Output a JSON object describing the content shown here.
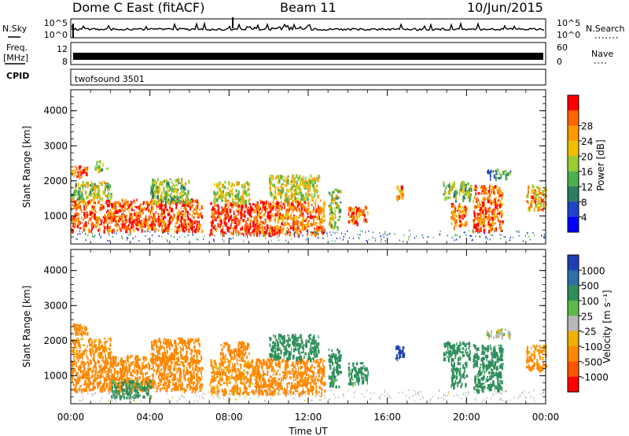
{
  "header": {
    "station": "Dome C East (fitACF)",
    "beam": "Beam 11",
    "date": "10/Jun/2015"
  },
  "panels": {
    "nsky": {
      "label": "N.Sky",
      "ticks": [
        "10^5",
        "10^0"
      ]
    },
    "nsearch": {
      "label": "N.Search"
    },
    "freq": {
      "label_line1": "Freq.",
      "label_line2": "[MHz]",
      "ticks": [
        "12",
        "8"
      ]
    },
    "nave": {
      "label": "Nave",
      "ticks": [
        "60",
        "0"
      ]
    },
    "cpid": {
      "label": "CPID",
      "value": "twofsound 3501"
    }
  },
  "chart_data": [
    {
      "type": "heatmap",
      "name": "Power",
      "xlabel": "Time UT",
      "ylabel": "Slant Range [km]",
      "x_ticks": [
        "00:00",
        "04:00",
        "08:00",
        "12:00",
        "16:00",
        "20:00",
        "00:00"
      ],
      "xlim_hours": [
        0,
        24
      ],
      "y_ticks": [
        1000,
        2000,
        3000,
        4000
      ],
      "ylim": [
        200,
        4600
      ],
      "colorbar": {
        "label": "Power [dB]",
        "ticks": [
          "4",
          "8",
          "12",
          "16",
          "20",
          "24",
          "28"
        ],
        "range": [
          0,
          32
        ],
        "colors": [
          "#0000ff",
          "#2244cc",
          "#2e7d5e",
          "#4caf50",
          "#9acd32",
          "#f0c000",
          "#ff9900",
          "#ff6600",
          "#ff0000"
        ]
      },
      "regions": [
        {
          "t0": 0.0,
          "t1": 6.6,
          "r0": 600,
          "r1": 1500,
          "v": 27
        },
        {
          "t0": 0.0,
          "t1": 2.0,
          "r0": 1500,
          "r1": 2000,
          "v": 16
        },
        {
          "t0": 0.0,
          "t1": 0.8,
          "r0": 2150,
          "r1": 2450,
          "v": 25
        },
        {
          "t0": 1.2,
          "t1": 1.8,
          "r0": 2350,
          "r1": 2600,
          "v": 14
        },
        {
          "t0": 4.0,
          "t1": 6.0,
          "r0": 1400,
          "r1": 2100,
          "v": 14
        },
        {
          "t0": 7.0,
          "t1": 9.5,
          "r0": 500,
          "r1": 1400,
          "v": 30
        },
        {
          "t0": 7.2,
          "t1": 9.0,
          "r0": 1400,
          "r1": 2000,
          "v": 18
        },
        {
          "t0": 9.3,
          "t1": 12.8,
          "r0": 500,
          "r1": 1500,
          "v": 26
        },
        {
          "t0": 10.0,
          "t1": 12.5,
          "r0": 1500,
          "r1": 2200,
          "v": 18
        },
        {
          "t0": 13.0,
          "t1": 13.6,
          "r0": 700,
          "r1": 1800,
          "v": 16
        },
        {
          "t0": 14.0,
          "t1": 15.0,
          "r0": 800,
          "r1": 1300,
          "v": 26
        },
        {
          "t0": 16.4,
          "t1": 16.8,
          "r0": 1500,
          "r1": 1900,
          "v": 22
        },
        {
          "t0": 18.8,
          "t1": 20.2,
          "r0": 1500,
          "r1": 2000,
          "v": 14
        },
        {
          "t0": 19.2,
          "t1": 20.0,
          "r0": 700,
          "r1": 1400,
          "v": 26
        },
        {
          "t0": 20.3,
          "t1": 21.8,
          "r0": 600,
          "r1": 1900,
          "v": 26
        },
        {
          "t0": 21.0,
          "t1": 22.2,
          "r0": 2100,
          "r1": 2350,
          "v": 10
        },
        {
          "t0": 23.0,
          "t1": 24.0,
          "r0": 1200,
          "r1": 1900,
          "v": 22
        }
      ]
    },
    {
      "type": "heatmap",
      "name": "Velocity",
      "xlabel": "Time UT",
      "ylabel": "Slant Range [km]",
      "x_ticks": [
        "00:00",
        "04:00",
        "08:00",
        "12:00",
        "16:00",
        "20:00",
        "00:00"
      ],
      "xlim_hours": [
        0,
        24
      ],
      "y_ticks": [
        1000,
        2000,
        3000,
        4000
      ],
      "ylim": [
        200,
        4600
      ],
      "colorbar": {
        "label": "Velocity [m s⁻¹]",
        "ticks": [
          "1000",
          "500",
          "100",
          "25",
          "-25",
          "-100",
          "-500",
          "-1000"
        ],
        "colors": [
          "#1f3fb5",
          "#2e6fa8",
          "#2f8f5a",
          "#5fb84a",
          "#b8b8b8",
          "#f0b000",
          "#ff8800",
          "#ff5500",
          "#ff0000"
        ]
      },
      "regions": [
        {
          "t0": 0.0,
          "t1": 6.6,
          "r0": 600,
          "r1": 1600,
          "v": -300
        },
        {
          "t0": 0.0,
          "t1": 2.0,
          "r0": 1600,
          "r1": 2100,
          "v": -150
        },
        {
          "t0": 0.0,
          "t1": 0.8,
          "r0": 2200,
          "r1": 2500,
          "v": -300
        },
        {
          "t0": 4.0,
          "t1": 6.5,
          "r0": 1400,
          "r1": 2100,
          "v": -300
        },
        {
          "t0": 2.0,
          "t1": 4.0,
          "r0": 400,
          "r1": 900,
          "v": 200
        },
        {
          "t0": 7.0,
          "t1": 9.5,
          "r0": 500,
          "r1": 1500,
          "v": -150
        },
        {
          "t0": 7.5,
          "t1": 9.0,
          "r0": 1500,
          "r1": 2000,
          "v": -300
        },
        {
          "t0": 9.3,
          "t1": 12.8,
          "r0": 500,
          "r1": 1500,
          "v": -300
        },
        {
          "t0": 10.0,
          "t1": 12.5,
          "r0": 1500,
          "r1": 2200,
          "v": 300
        },
        {
          "t0": 13.0,
          "t1": 13.6,
          "r0": 700,
          "r1": 1800,
          "v": 200
        },
        {
          "t0": 14.0,
          "t1": 15.0,
          "r0": 800,
          "r1": 1400,
          "v": 200
        },
        {
          "t0": 16.4,
          "t1": 16.8,
          "r0": 1500,
          "r1": 1900,
          "v": 1200
        },
        {
          "t0": 18.8,
          "t1": 20.2,
          "r0": 1500,
          "r1": 2000,
          "v": 300
        },
        {
          "t0": 19.2,
          "t1": 20.0,
          "r0": 700,
          "r1": 1400,
          "v": 300
        },
        {
          "t0": 20.3,
          "t1": 21.8,
          "r0": 600,
          "r1": 1900,
          "v": 300
        },
        {
          "t0": 21.0,
          "t1": 22.2,
          "r0": 2100,
          "r1": 2350,
          "v": 0
        },
        {
          "t0": 23.0,
          "t1": 24.0,
          "r0": 1200,
          "r1": 1900,
          "v": -150
        }
      ]
    }
  ]
}
